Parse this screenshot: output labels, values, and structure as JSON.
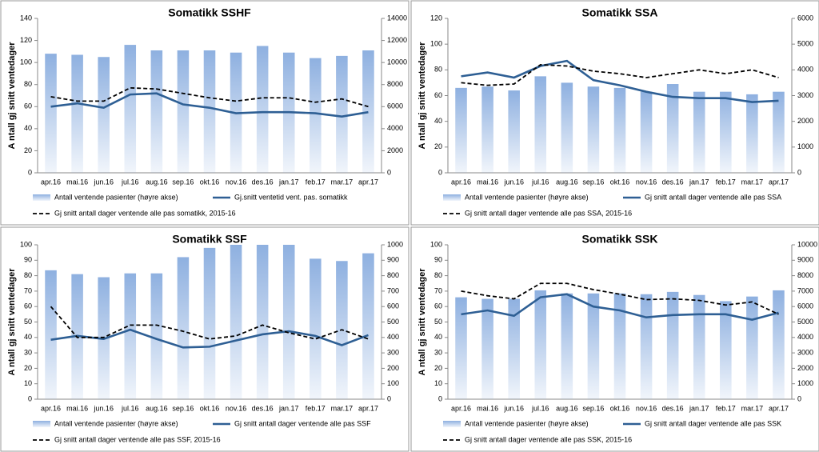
{
  "chart_data": [
    {
      "type": "bar-line",
      "title": "Somatikk SSHF",
      "ylabel": "A ntall gj snitt ventedager",
      "categories": [
        "apr.16",
        "mai.16",
        "jun.16",
        "jul.16",
        "aug.16",
        "sep.16",
        "okt.16",
        "nov.16",
        "des.16",
        "jan.17",
        "feb.17",
        "mar.17",
        "apr.17"
      ],
      "ylim": [
        0,
        140
      ],
      "yticks": [
        0,
        20,
        40,
        60,
        80,
        100,
        120,
        140
      ],
      "y2lim": [
        0,
        14000
      ],
      "y2ticks": [
        0,
        2000,
        4000,
        6000,
        8000,
        10000,
        12000,
        14000
      ],
      "series": [
        {
          "name": "Antall ventende pasienter (høyre akse)",
          "type": "bar",
          "axis": "y2",
          "color": "#8eb0e0",
          "values": [
            10800,
            10700,
            10500,
            11600,
            11100,
            11100,
            11100,
            10900,
            11500,
            10900,
            10400,
            10600,
            11100
          ]
        },
        {
          "name": "Gj.snitt ventetid vent. pas. somatikk",
          "type": "line",
          "color": "#2e5f94",
          "linestyle": "solid",
          "values": [
            60,
            63,
            59,
            71,
            72,
            62,
            59,
            54,
            55,
            55,
            54,
            51,
            55
          ]
        },
        {
          "name": "Gj snitt antall dager ventende alle pas somatikk, 2015-16",
          "type": "line",
          "color": "#000000",
          "linestyle": "dashed",
          "values": [
            69,
            65,
            65,
            77,
            76,
            72,
            68,
            65,
            68,
            68,
            64,
            67,
            60
          ]
        }
      ]
    },
    {
      "type": "bar-line",
      "title": "Somatikk SSA",
      "ylabel": "A ntall gj snitt ventedager",
      "categories": [
        "apr.16",
        "mai.16",
        "jun.16",
        "jul.16",
        "aug.16",
        "sep.16",
        "okt.16",
        "nov.16",
        "des.16",
        "jan.17",
        "feb.17",
        "mar.17",
        "apr.17"
      ],
      "ylim": [
        0,
        120
      ],
      "yticks": [
        0,
        20,
        40,
        60,
        80,
        100,
        120
      ],
      "y2lim": [
        0,
        6000
      ],
      "y2ticks": [
        0,
        1000,
        2000,
        3000,
        4000,
        5000,
        6000
      ],
      "series": [
        {
          "name": "Antall ventende pasienter (høyre akse)",
          "type": "bar",
          "axis": "y2",
          "color": "#8eb0e0",
          "values": [
            3300,
            3350,
            3200,
            3750,
            3500,
            3350,
            3300,
            3150,
            3450,
            3150,
            3150,
            3050,
            3150
          ]
        },
        {
          "name": "Gj snitt antall dager ventende alle pas SSA",
          "type": "line",
          "color": "#2e5f94",
          "linestyle": "solid",
          "values": [
            75,
            78,
            74,
            83,
            87,
            72,
            68,
            63,
            59,
            58,
            58,
            55,
            56
          ]
        },
        {
          "name": "Gj snitt antall dager ventende alle pas SSA, 2015-16",
          "type": "line",
          "color": "#000000",
          "linestyle": "dashed",
          "values": [
            70,
            68,
            69,
            84,
            83,
            79,
            77,
            74,
            77,
            80,
            77,
            80,
            74
          ]
        }
      ]
    },
    {
      "type": "bar-line",
      "title": "Somatikk SSF",
      "ylabel": "A ntall gj snitt ventedager",
      "categories": [
        "apr.16",
        "mai.16",
        "jun.16",
        "jul.16",
        "aug.16",
        "sep.16",
        "okt.16",
        "nov.16",
        "des.16",
        "jan.17",
        "feb.17",
        "mar.17",
        "apr.17"
      ],
      "ylim": [
        0,
        100
      ],
      "yticks": [
        0,
        10,
        20,
        30,
        40,
        50,
        60,
        70,
        80,
        90,
        100
      ],
      "y2lim": [
        0,
        1000
      ],
      "y2ticks": [
        0,
        100,
        200,
        300,
        400,
        500,
        600,
        700,
        800,
        900,
        1000
      ],
      "series": [
        {
          "name": "Antall ventende pasienter (høyre akse)",
          "type": "bar",
          "axis": "y2",
          "color": "#8eb0e0",
          "values": [
            835,
            810,
            790,
            815,
            815,
            920,
            980,
            1000,
            1000,
            1000,
            910,
            895,
            945
          ]
        },
        {
          "name": "Gj snitt antall dager ventende alle pas SSF",
          "type": "line",
          "color": "#2e5f94",
          "linestyle": "solid",
          "values": [
            38.5,
            41,
            39,
            45,
            39,
            33.5,
            34,
            38,
            42,
            44,
            41,
            35,
            41.5
          ]
        },
        {
          "name": "Gj snitt antall dager ventende alle pas SSF, 2015-16",
          "type": "line",
          "color": "#000000",
          "linestyle": "dashed",
          "values": [
            60,
            40,
            40,
            48,
            48,
            44,
            39,
            41,
            48,
            43,
            39,
            45,
            39
          ]
        }
      ]
    },
    {
      "type": "bar-line",
      "title": "Somatikk SSK",
      "ylabel": "A ntall gj snitt ventedager",
      "categories": [
        "apr.16",
        "mai.16",
        "jun.16",
        "jul.16",
        "aug.16",
        "sep.16",
        "okt.16",
        "nov.16",
        "des.16",
        "jan.17",
        "feb.17",
        "mar.17",
        "apr.17"
      ],
      "ylim": [
        0,
        100
      ],
      "yticks": [
        0,
        10,
        20,
        30,
        40,
        50,
        60,
        70,
        80,
        90,
        100
      ],
      "y2lim": [
        0,
        10000
      ],
      "y2ticks": [
        0,
        1000,
        2000,
        3000,
        4000,
        5000,
        6000,
        7000,
        8000,
        9000,
        10000
      ],
      "series": [
        {
          "name": "Antall ventende pasienter (høyre akse)",
          "type": "bar",
          "axis": "y2",
          "color": "#8eb0e0",
          "values": [
            6600,
            6500,
            6500,
            7050,
            6850,
            6850,
            6850,
            6800,
            6950,
            6750,
            6350,
            6650,
            7050
          ]
        },
        {
          "name": "Gj snitt antall dager ventende alle pas SSK",
          "type": "line",
          "color": "#2e5f94",
          "linestyle": "solid",
          "values": [
            55,
            57.5,
            54,
            66,
            68,
            60,
            57.5,
            53,
            54.5,
            55,
            55,
            51.5,
            56
          ]
        },
        {
          "name": "Gj snitt antall dager ventende alle pas SSK, 2015-16",
          "type": "line",
          "color": "#000000",
          "linestyle": "dashed",
          "values": [
            70,
            67,
            65,
            75,
            75,
            71,
            68,
            64.5,
            65,
            64,
            61,
            63,
            55
          ]
        }
      ]
    }
  ]
}
